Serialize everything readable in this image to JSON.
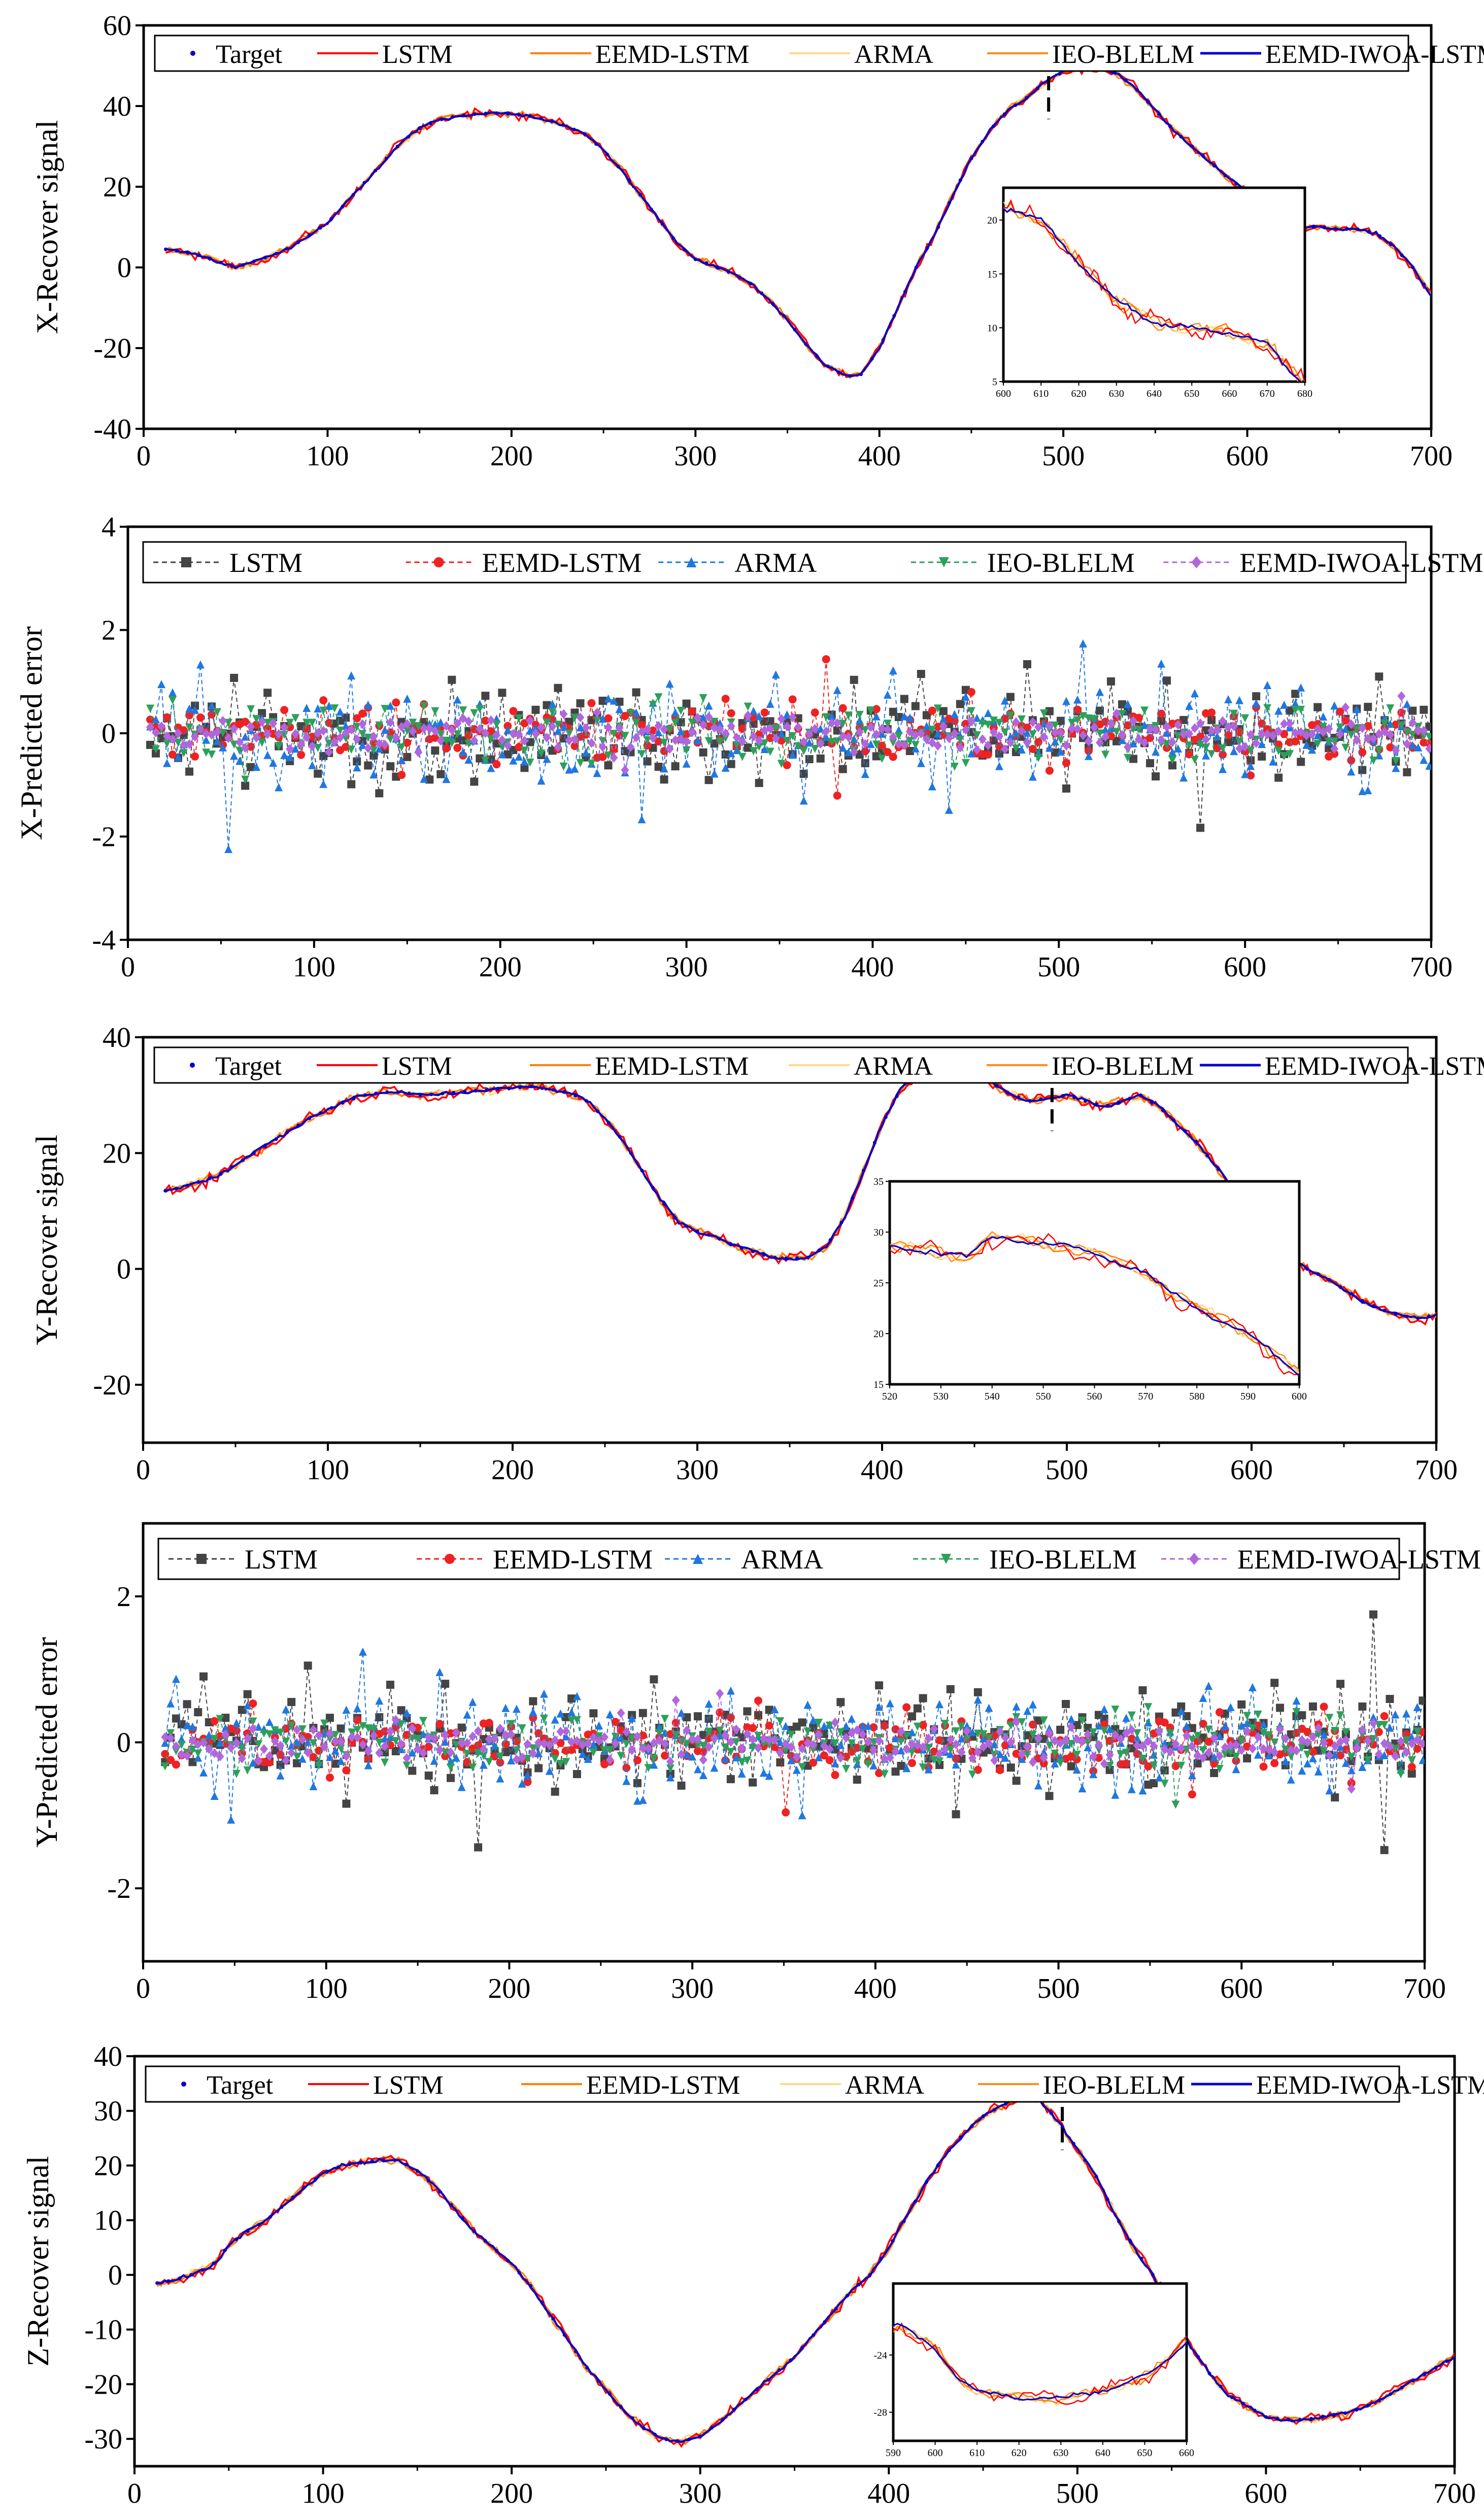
{
  "figure": {
    "description_free": true
  },
  "chart_data": [
    {
      "id": "x-recover",
      "type": "line",
      "ylabel": "X-Recover signal",
      "xlim": [
        0,
        700
      ],
      "ylim": [
        -40,
        60
      ],
      "xticks": [
        0,
        100,
        200,
        300,
        400,
        500,
        600,
        700
      ],
      "yticks": [
        -40,
        -20,
        0,
        20,
        40,
        60
      ],
      "legend": {
        "entries": [
          "Target",
          "LSTM",
          "EEMD-LSTM",
          "ARMA",
          "IEO-BLELM",
          "EEMD-IWOA-LSTM"
        ],
        "placement": "top-left, single row"
      },
      "series": [
        {
          "name": "Target",
          "color": "#0000cc",
          "style": "dots"
        },
        {
          "name": "LSTM",
          "color": "#ff0000",
          "style": "line"
        },
        {
          "name": "EEMD-LSTM",
          "color": "#ff8000",
          "style": "line"
        },
        {
          "name": "ARMA",
          "color": "#ffd98a",
          "style": "line"
        },
        {
          "name": "IEO-BLELM",
          "color": "#ff8c1a",
          "style": "line"
        },
        {
          "name": "EEMD-IWOA-LSTM",
          "color": "#0000cc",
          "style": "line"
        }
      ],
      "target": {
        "x": [
          12,
          20,
          30,
          40,
          50,
          60,
          70,
          80,
          90,
          100,
          110,
          120,
          130,
          140,
          150,
          160,
          170,
          180,
          190,
          200,
          210,
          220,
          230,
          240,
          250,
          260,
          270,
          280,
          290,
          300,
          310,
          320,
          330,
          340,
          350,
          360,
          370,
          380,
          385,
          390,
          400,
          410,
          420,
          430,
          440,
          450,
          460,
          470,
          480,
          490,
          500,
          510,
          520,
          530,
          540,
          550,
          560,
          570,
          580,
          590,
          600,
          610,
          620,
          630,
          640,
          650,
          660,
          670,
          680,
          690,
          700
        ],
        "y": [
          4.5,
          4,
          3,
          1.5,
          0,
          1.5,
          3,
          5,
          8,
          11,
          16,
          21,
          26,
          31,
          34.5,
          36.5,
          37.5,
          38,
          38.3,
          38,
          37.5,
          36.5,
          35,
          33,
          29,
          24,
          18,
          12,
          6,
          2,
          0.5,
          -1.5,
          -4,
          -8,
          -13,
          -19,
          -24,
          -26.5,
          -27,
          -26.5,
          -20,
          -10,
          0,
          8,
          18,
          27,
          34,
          39,
          42,
          46,
          48.5,
          49.5,
          49.5,
          48,
          44,
          39,
          34,
          30,
          26,
          22,
          19,
          16,
          12,
          10,
          10,
          9.5,
          9.5,
          8.5,
          5,
          0,
          -7
        ]
      },
      "inset": {
        "xlim": [
          600,
          680
        ],
        "ylim": [
          5,
          23
        ],
        "xticks": [
          600,
          610,
          620,
          630,
          640,
          650,
          660,
          670,
          680
        ],
        "yticks": [
          5,
          10,
          15,
          20
        ],
        "target": {
          "x": [
            602,
            610,
            620,
            630,
            640,
            650,
            660,
            670,
            675,
            680
          ],
          "y": [
            21,
            20,
            16,
            12.5,
            10.5,
            10,
            9.5,
            8.5,
            6.5,
            4.5
          ]
        }
      },
      "marker_x": 492,
      "error_amplitude": 0.4
    },
    {
      "id": "x-error",
      "type": "line",
      "ylabel": "X-Predicted error",
      "xlim": [
        0,
        700
      ],
      "ylim": [
        -4,
        4
      ],
      "xticks": [
        0,
        100,
        200,
        300,
        400,
        500,
        600,
        700
      ],
      "yticks": [
        -4,
        -2,
        0,
        2,
        4
      ],
      "legend": {
        "entries": [
          "LSTM",
          "EEMD-LSTM",
          "ARMA",
          "IEO-BLELM",
          "EEMD-IWOA-LSTM"
        ],
        "placement": "top, single row"
      },
      "series": [
        {
          "name": "LSTM",
          "color": "#444444",
          "marker": "square",
          "amplitude": 0.7
        },
        {
          "name": "EEMD-LSTM",
          "color": "#ee2222",
          "marker": "circle",
          "amplitude": 0.45
        },
        {
          "name": "ARMA",
          "color": "#1f77e0",
          "marker": "triangle-up",
          "amplitude": 0.7
        },
        {
          "name": "IEO-BLELM",
          "color": "#2ca05a",
          "marker": "triangle-down",
          "amplitude": 0.45
        },
        {
          "name": "EEMD-IWOA-LSTM",
          "color": "#b266dd",
          "marker": "diamond",
          "amplitude": 0.25
        }
      ],
      "x_range": [
        12,
        700
      ]
    },
    {
      "id": "y-recover",
      "type": "line",
      "ylabel": "Y-Recover signal",
      "xlim": [
        0,
        700
      ],
      "ylim": [
        -30,
        40
      ],
      "xticks": [
        0,
        100,
        200,
        300,
        400,
        500,
        600,
        700
      ],
      "yticks": [
        -20,
        0,
        20,
        40
      ],
      "legend": {
        "entries": [
          "Target",
          "LSTM",
          "EEMD-LSTM",
          "ARMA",
          "IEO-BLELM",
          "EEMD-IWOA-LSTM"
        ],
        "placement": "top-left, single row"
      },
      "series": [
        {
          "name": "Target",
          "color": "#0000cc",
          "style": "dots"
        },
        {
          "name": "LSTM",
          "color": "#ff0000",
          "style": "line"
        },
        {
          "name": "EEMD-LSTM",
          "color": "#ff8000",
          "style": "line"
        },
        {
          "name": "ARMA",
          "color": "#ffd98a",
          "style": "line"
        },
        {
          "name": "IEO-BLELM",
          "color": "#ff8c1a",
          "style": "line"
        },
        {
          "name": "EEMD-IWOA-LSTM",
          "color": "#0000cc",
          "style": "line"
        }
      ],
      "target": {
        "x": [
          12,
          20,
          30,
          40,
          50,
          60,
          70,
          80,
          90,
          100,
          110,
          120,
          130,
          140,
          150,
          160,
          170,
          180,
          190,
          200,
          210,
          220,
          230,
          240,
          250,
          260,
          270,
          280,
          290,
          300,
          310,
          320,
          330,
          340,
          350,
          360,
          370,
          380,
          390,
          400,
          410,
          420,
          430,
          440,
          450,
          460,
          470,
          480,
          490,
          500,
          510,
          520,
          530,
          540,
          550,
          560,
          570,
          580,
          590,
          600,
          610,
          620,
          630,
          640,
          650,
          660,
          670,
          680,
          690,
          700
        ],
        "y": [
          13.5,
          14,
          15,
          16,
          18,
          20,
          22,
          24,
          26,
          27.5,
          29,
          30,
          30.5,
          30.5,
          30,
          30.2,
          30.5,
          30.8,
          31,
          31.2,
          31.5,
          31,
          30.5,
          29,
          26,
          22,
          17,
          12,
          8,
          6.5,
          5.5,
          4,
          3,
          2,
          1.8,
          2,
          4,
          9,
          17,
          25,
          31,
          34,
          35,
          35,
          34.5,
          32,
          30,
          29,
          29.5,
          30,
          29,
          28,
          29,
          30,
          28,
          25,
          22,
          18,
          14,
          10,
          6,
          2.5,
          0,
          -1.5,
          -3.5,
          -5.5,
          -7,
          -8,
          -8.5,
          -8
        ]
      },
      "inset": {
        "xlim": [
          520,
          600
        ],
        "ylim": [
          15,
          35
        ],
        "xticks": [
          520,
          530,
          540,
          550,
          560,
          570,
          580,
          590,
          600
        ],
        "yticks": [
          15,
          20,
          25,
          30,
          35
        ],
        "target": {
          "x": [
            520,
            530,
            535,
            540,
            550,
            560,
            570,
            575,
            580,
            590,
            600
          ],
          "y": [
            28.5,
            28,
            27.5,
            29.5,
            29,
            28,
            26,
            24,
            22.5,
            20,
            16
          ]
        }
      },
      "marker_x": 492,
      "error_amplitude": 0.35
    },
    {
      "id": "y-error",
      "type": "line",
      "ylabel": "Y-Predicted error",
      "xlim": [
        0,
        700
      ],
      "ylim": [
        -3,
        3
      ],
      "xticks": [
        0,
        100,
        200,
        300,
        400,
        500,
        600,
        700
      ],
      "yticks": [
        -2,
        0,
        2
      ],
      "legend": {
        "entries": [
          "LSTM",
          "EEMD-LSTM",
          "ARMA",
          "IEO-BLELM",
          "EEMD-IWOA-LSTM"
        ],
        "placement": "top, single row"
      },
      "series": [
        {
          "name": "LSTM",
          "color": "#444444",
          "marker": "square",
          "amplitude": 0.55
        },
        {
          "name": "EEMD-LSTM",
          "color": "#ee2222",
          "marker": "circle",
          "amplitude": 0.3
        },
        {
          "name": "ARMA",
          "color": "#1f77e0",
          "marker": "triangle-up",
          "amplitude": 0.5
        },
        {
          "name": "IEO-BLELM",
          "color": "#2ca05a",
          "marker": "triangle-down",
          "amplitude": 0.3
        },
        {
          "name": "EEMD-IWOA-LSTM",
          "color": "#b266dd",
          "marker": "diamond",
          "amplitude": 0.2
        }
      ],
      "x_range": [
        12,
        700
      ]
    },
    {
      "id": "z-recover",
      "type": "line",
      "ylabel": "Z-Recover signal",
      "xlim": [
        0,
        700
      ],
      "ylim": [
        -35,
        40
      ],
      "xticks": [
        0,
        100,
        200,
        300,
        400,
        500,
        600,
        700
      ],
      "yticks": [
        -30,
        -20,
        -10,
        0,
        10,
        20,
        30,
        40
      ],
      "legend": {
        "entries": [
          "Target",
          "LSTM",
          "EEMD-LSTM",
          "ARMA",
          "IEO-BLELM",
          "EEMD-IWOA-LSTM"
        ],
        "placement": "top-left, single row"
      },
      "series": [
        {
          "name": "Target",
          "color": "#0000cc",
          "style": "dots"
        },
        {
          "name": "LSTM",
          "color": "#ff0000",
          "style": "line"
        },
        {
          "name": "EEMD-LSTM",
          "color": "#ff8000",
          "style": "line"
        },
        {
          "name": "ARMA",
          "color": "#ffd98a",
          "style": "line"
        },
        {
          "name": "IEO-BLELM",
          "color": "#ff8c1a",
          "style": "line"
        },
        {
          "name": "EEMD-IWOA-LSTM",
          "color": "#0000cc",
          "style": "line"
        }
      ],
      "target": {
        "x": [
          12,
          20,
          30,
          40,
          45,
          50,
          60,
          70,
          80,
          90,
          100,
          110,
          120,
          130,
          140,
          150,
          160,
          170,
          180,
          190,
          200,
          210,
          220,
          230,
          240,
          250,
          260,
          270,
          280,
          290,
          300,
          310,
          320,
          330,
          340,
          350,
          360,
          370,
          380,
          390,
          400,
          410,
          420,
          430,
          440,
          450,
          460,
          470,
          480,
          490,
          500,
          510,
          520,
          530,
          540,
          550,
          560,
          570,
          580,
          590,
          600,
          610,
          620,
          630,
          640,
          650,
          660,
          670,
          680,
          690,
          700
        ],
        "y": [
          -1.5,
          -1,
          0,
          1.5,
          3,
          5.5,
          8,
          10,
          13,
          16,
          18.5,
          20,
          20.5,
          21,
          21,
          19,
          16,
          12,
          8,
          5,
          2,
          -2,
          -7,
          -12,
          -17,
          -21,
          -25,
          -28,
          -30,
          -30.5,
          -29.5,
          -27,
          -24,
          -21,
          -18,
          -15,
          -11,
          -7,
          -3,
          0,
          5,
          11,
          17,
          22,
          26,
          29,
          31,
          32.5,
          32,
          28,
          23,
          18,
          11,
          5,
          0,
          -7,
          -13,
          -18,
          -22,
          -24,
          -26,
          -26.5,
          -26.5,
          -26,
          -25.5,
          -24.5,
          -23,
          -21,
          -19,
          -17,
          -15
        ]
      },
      "inset": {
        "xlim": [
          590,
          660
        ],
        "ylim": [
          -30,
          -19
        ],
        "xticks": [
          590,
          600,
          610,
          620,
          630,
          640,
          650,
          660
        ],
        "yticks": [
          -28,
          -24
        ],
        "target": {
          "x": [
            592,
            600,
            605,
            610,
            620,
            630,
            640,
            650,
            655,
            660
          ],
          "y": [
            -22,
            -23.5,
            -25.5,
            -26.5,
            -27,
            -27,
            -26.5,
            -25.5,
            -24.5,
            -23
          ]
        }
      },
      "marker_x": 492,
      "error_amplitude": 0.35
    }
  ]
}
